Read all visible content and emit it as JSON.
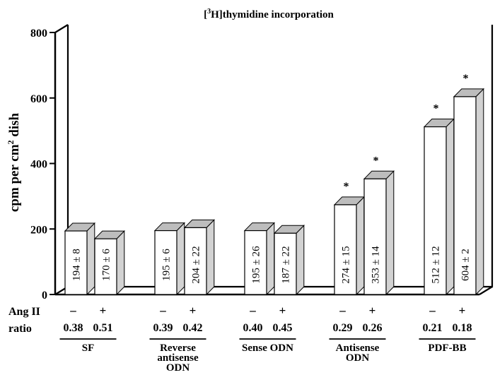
{
  "chart_data": {
    "type": "bar",
    "title_pre": "[",
    "title_sup": "3",
    "title_post": "H]thymidine incorporation",
    "ylabel_main": "cpm per cm",
    "ylabel_sup": "2",
    "ylabel_tail": " dish",
    "ylim": [
      0,
      800
    ],
    "yticks": [
      "0",
      "200",
      "400",
      "600",
      "800"
    ],
    "row_labels": {
      "angii": "Ang II",
      "ratio": "ratio"
    },
    "bars": [
      {
        "group": 0,
        "sign": "–",
        "value": 194,
        "label": "194 ± 8",
        "ratio": "0.38",
        "star": false
      },
      {
        "group": 0,
        "sign": "+",
        "value": 170,
        "label": "170 ± 6",
        "ratio": "0.51",
        "star": false
      },
      {
        "group": 1,
        "sign": "–",
        "value": 195,
        "label": "195 ± 6",
        "ratio": "0.39",
        "star": false
      },
      {
        "group": 1,
        "sign": "+",
        "value": 204,
        "label": "204 ± 22",
        "ratio": "0.42",
        "star": false
      },
      {
        "group": 2,
        "sign": "–",
        "value": 195,
        "label": "195 ± 26",
        "ratio": "0.40",
        "star": false
      },
      {
        "group": 2,
        "sign": "+",
        "value": 187,
        "label": "187 ± 22",
        "ratio": "0.45",
        "star": false
      },
      {
        "group": 3,
        "sign": "–",
        "value": 274,
        "label": "274 ± 15",
        "ratio": "0.29",
        "star": true
      },
      {
        "group": 3,
        "sign": "+",
        "value": 353,
        "label": "353 ± 14",
        "ratio": "0.26",
        "star": true
      },
      {
        "group": 4,
        "sign": "–",
        "value": 512,
        "label": "512 ± 12",
        "ratio": "0.21",
        "star": true
      },
      {
        "group": 4,
        "sign": "+",
        "value": 604,
        "label": "604 ± 2",
        "ratio": "0.18",
        "star": true
      }
    ],
    "star_symbol": "*",
    "groups": [
      [
        "SF"
      ],
      [
        "Reverse",
        "antisense",
        "ODN"
      ],
      [
        "Sense ODN"
      ],
      [
        "Antisense",
        "ODN"
      ],
      [
        "PDF-BB"
      ]
    ]
  }
}
